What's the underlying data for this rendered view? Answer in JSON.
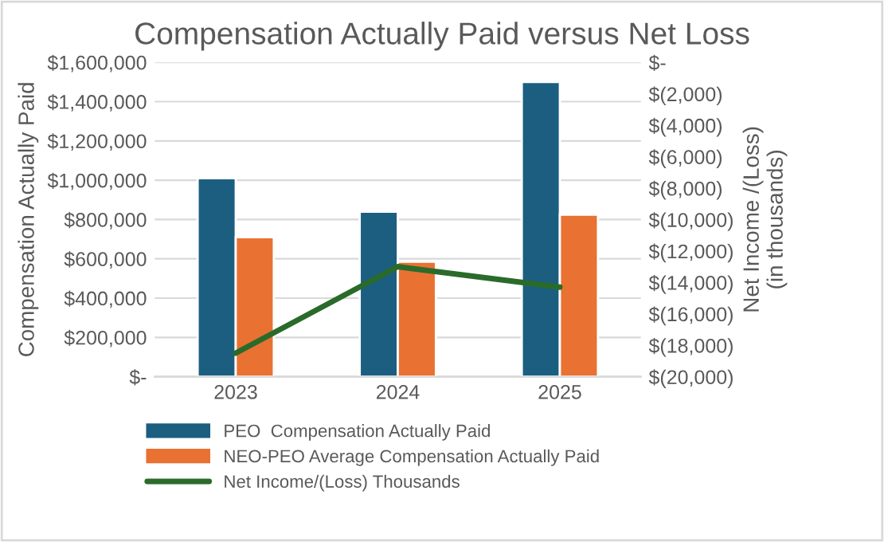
{
  "chart_data": {
    "type": "bar",
    "title": "Compensation Actually Paid versus Net Loss",
    "categories": [
      "2023",
      "2024",
      "2025"
    ],
    "ylabel": "Compensation Actually Paid",
    "y2label": "Net Income /(Loss)\n(in thousands)",
    "series": [
      {
        "name": "PEO  Compensation Actually Paid",
        "color": "#1b5e80",
        "values": [
          1010000,
          840000,
          1500000
        ]
      },
      {
        "name": "NEO-PEO Average Compensation Actually Paid",
        "color": "#e97132",
        "values": [
          710000,
          585000,
          825000
        ]
      },
      {
        "name": "Net Income/(Loss) Thousands",
        "type": "line",
        "axis": "y2",
        "color": "#2a6b2a",
        "values": [
          -18500,
          -13000,
          -14300
        ]
      }
    ],
    "ylim": [
      0,
      1600000
    ],
    "yticks": [
      {
        "value": 0,
        "label": "$-"
      },
      {
        "value": 200000,
        "label": "$200,000"
      },
      {
        "value": 400000,
        "label": "$400,000"
      },
      {
        "value": 600000,
        "label": "$600,000"
      },
      {
        "value": 800000,
        "label": "$800,000"
      },
      {
        "value": 1000000,
        "label": "$1,000,000"
      },
      {
        "value": 1200000,
        "label": "$1,200,000"
      },
      {
        "value": 1400000,
        "label": "$1,400,000"
      },
      {
        "value": 1600000,
        "label": "$1,600,000"
      }
    ],
    "y2lim": [
      -20000,
      0
    ],
    "y2ticks": [
      {
        "value": -20000,
        "label": "$(20,000)"
      },
      {
        "value": -18000,
        "label": "$(18,000)"
      },
      {
        "value": -16000,
        "label": "$(16,000)"
      },
      {
        "value": -14000,
        "label": "$(14,000)"
      },
      {
        "value": -12000,
        "label": "$(12,000)"
      },
      {
        "value": -10000,
        "label": "$(10,000)"
      },
      {
        "value": -8000,
        "label": "$(8,000)"
      },
      {
        "value": -6000,
        "label": "$(6,000)"
      },
      {
        "value": -4000,
        "label": "$(4,000)"
      },
      {
        "value": -2000,
        "label": "$(2,000)"
      },
      {
        "value": 0,
        "label": "$-"
      }
    ],
    "grid": "y",
    "legend": "bottom",
    "marker": "none"
  }
}
